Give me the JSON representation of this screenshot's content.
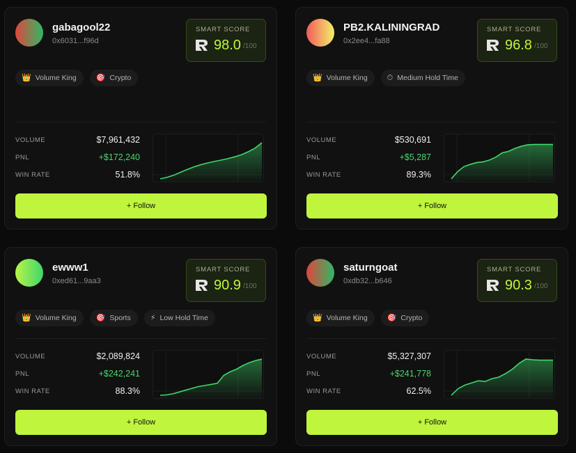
{
  "traders": [
    {
      "username": "gabagool22",
      "address": "0x6031...f96d",
      "avatar_colors": [
        "#e0463c",
        "#2fb866"
      ],
      "score_label": "SMART SCORE",
      "score": "98.0",
      "score_max": "/100",
      "tags": [
        {
          "icon": "crown-icon",
          "glyph": "👑",
          "label": "Volume King"
        },
        {
          "icon": "target-icon",
          "glyph": "🎯",
          "label": "Crypto"
        }
      ],
      "stats": [
        {
          "label": "VOLUME",
          "value": "$7,961,432"
        },
        {
          "label": "PNL",
          "value": "+$172,240"
        },
        {
          "label": "WIN RATE",
          "value": "51.8%"
        }
      ],
      "pnl_series": [
        0,
        4,
        10,
        18,
        26,
        33,
        39,
        44,
        48,
        52,
        56,
        61,
        67,
        75,
        85,
        100
      ],
      "follow_label": "+ Follow"
    },
    {
      "username": "PB2.KALININGRAD",
      "address": "0x2ee4...fa88",
      "avatar_colors": [
        "#f15b5b",
        "#f3f06a"
      ],
      "score_label": "SMART SCORE",
      "score": "96.8",
      "score_max": "/100",
      "tags": [
        {
          "icon": "crown-icon",
          "glyph": "👑",
          "label": "Volume King"
        },
        {
          "icon": "stopwatch-icon",
          "glyph": "⏱",
          "label": "Medium Hold Time"
        }
      ],
      "stats": [
        {
          "label": "VOLUME",
          "value": "$530,691"
        },
        {
          "label": "PNL",
          "value": "+$5,287"
        },
        {
          "label": "WIN RATE",
          "value": "89.3%"
        }
      ],
      "pnl_series": [
        0,
        20,
        34,
        40,
        45,
        47,
        52,
        60,
        72,
        76,
        84,
        90,
        94,
        95,
        95,
        95,
        95
      ],
      "follow_label": "+ Follow"
    },
    {
      "username": "ewww1",
      "address": "0xed61...9aa3",
      "avatar_colors": [
        "#b9f548",
        "#3ed66c"
      ],
      "score_label": "SMART SCORE",
      "score": "90.9",
      "score_max": "/100",
      "tags": [
        {
          "icon": "crown-icon",
          "glyph": "👑",
          "label": "Volume King"
        },
        {
          "icon": "target-icon",
          "glyph": "🎯",
          "label": "Sports"
        },
        {
          "icon": "lightning-icon",
          "glyph": "⚡",
          "label": "Low Hold Time"
        }
      ],
      "stats": [
        {
          "label": "VOLUME",
          "value": "$2,089,824"
        },
        {
          "label": "PNL",
          "value": "+$242,241"
        },
        {
          "label": "WIN RATE",
          "value": "88.3%"
        }
      ],
      "pnl_series": [
        0,
        1,
        4,
        9,
        14,
        19,
        24,
        27,
        30,
        33,
        55,
        65,
        72,
        82,
        90,
        96,
        100
      ],
      "follow_label": "+ Follow"
    },
    {
      "username": "saturngoat",
      "address": "0xdb32...b646",
      "avatar_colors": [
        "#e0463c",
        "#2fb866"
      ],
      "score_label": "SMART SCORE",
      "score": "90.3",
      "score_max": "/100",
      "tags": [
        {
          "icon": "crown-icon",
          "glyph": "👑",
          "label": "Volume King"
        },
        {
          "icon": "target-icon",
          "glyph": "🎯",
          "label": "Crypto"
        }
      ],
      "stats": [
        {
          "label": "VOLUME",
          "value": "$5,327,307"
        },
        {
          "label": "PNL",
          "value": "+$241,778"
        },
        {
          "label": "WIN RATE",
          "value": "62.5%"
        }
      ],
      "pnl_series": [
        0,
        18,
        28,
        34,
        40,
        38,
        46,
        50,
        60,
        72,
        88,
        100,
        98,
        97,
        97,
        97
      ],
      "follow_label": "+ Follow"
    }
  ],
  "colors": {
    "accent": "#bff53c",
    "score_text": "#c3f53c",
    "pnl_positive": "#4ad66d",
    "chart_line": "#3fd86b",
    "card_bg": "#111111"
  }
}
